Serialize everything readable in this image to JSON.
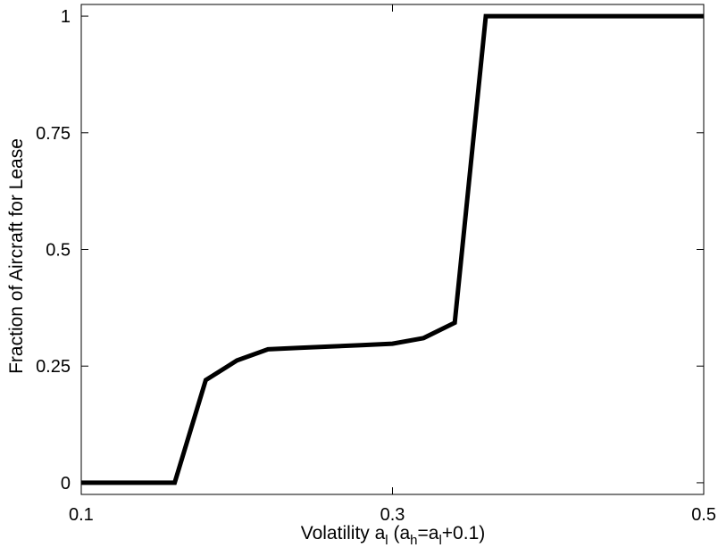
{
  "chart_data": {
    "type": "line",
    "title": "",
    "xlabel": "Volatility a",
    "xlabel_parts": {
      "prefix": "Volatility a",
      "sub1": "l",
      "mid": " (a",
      "sub2": "h",
      "eq": "=a",
      "sub3": "l",
      "suffix": "+0.1)"
    },
    "ylabel": "Fraction of Aircraft for Lease",
    "xlim": [
      0.1,
      0.5
    ],
    "ylim": [
      -0.025,
      1.025
    ],
    "x_ticks": [
      0.1,
      0.3,
      0.5
    ],
    "x_tick_labels": [
      "0.1",
      "0.3",
      "0.5"
    ],
    "y_ticks": [
      0,
      0.25,
      0.5,
      0.75,
      1
    ],
    "y_tick_labels": [
      "0",
      "0.25",
      "0.5",
      "0.75",
      "1"
    ],
    "grid": false,
    "series": [
      {
        "color": "#000000",
        "x": [
          0.1,
          0.16,
          0.18,
          0.2,
          0.22,
          0.24,
          0.26,
          0.28,
          0.3,
          0.32,
          0.34,
          0.36,
          0.38,
          0.4,
          0.42,
          0.44,
          0.46,
          0.48,
          0.5
        ],
        "y": [
          0,
          0,
          0.22,
          0.262,
          0.286,
          0.289,
          0.292,
          0.295,
          0.298,
          0.31,
          0.343,
          1,
          1,
          1,
          1,
          1,
          1,
          1,
          1
        ]
      }
    ]
  }
}
